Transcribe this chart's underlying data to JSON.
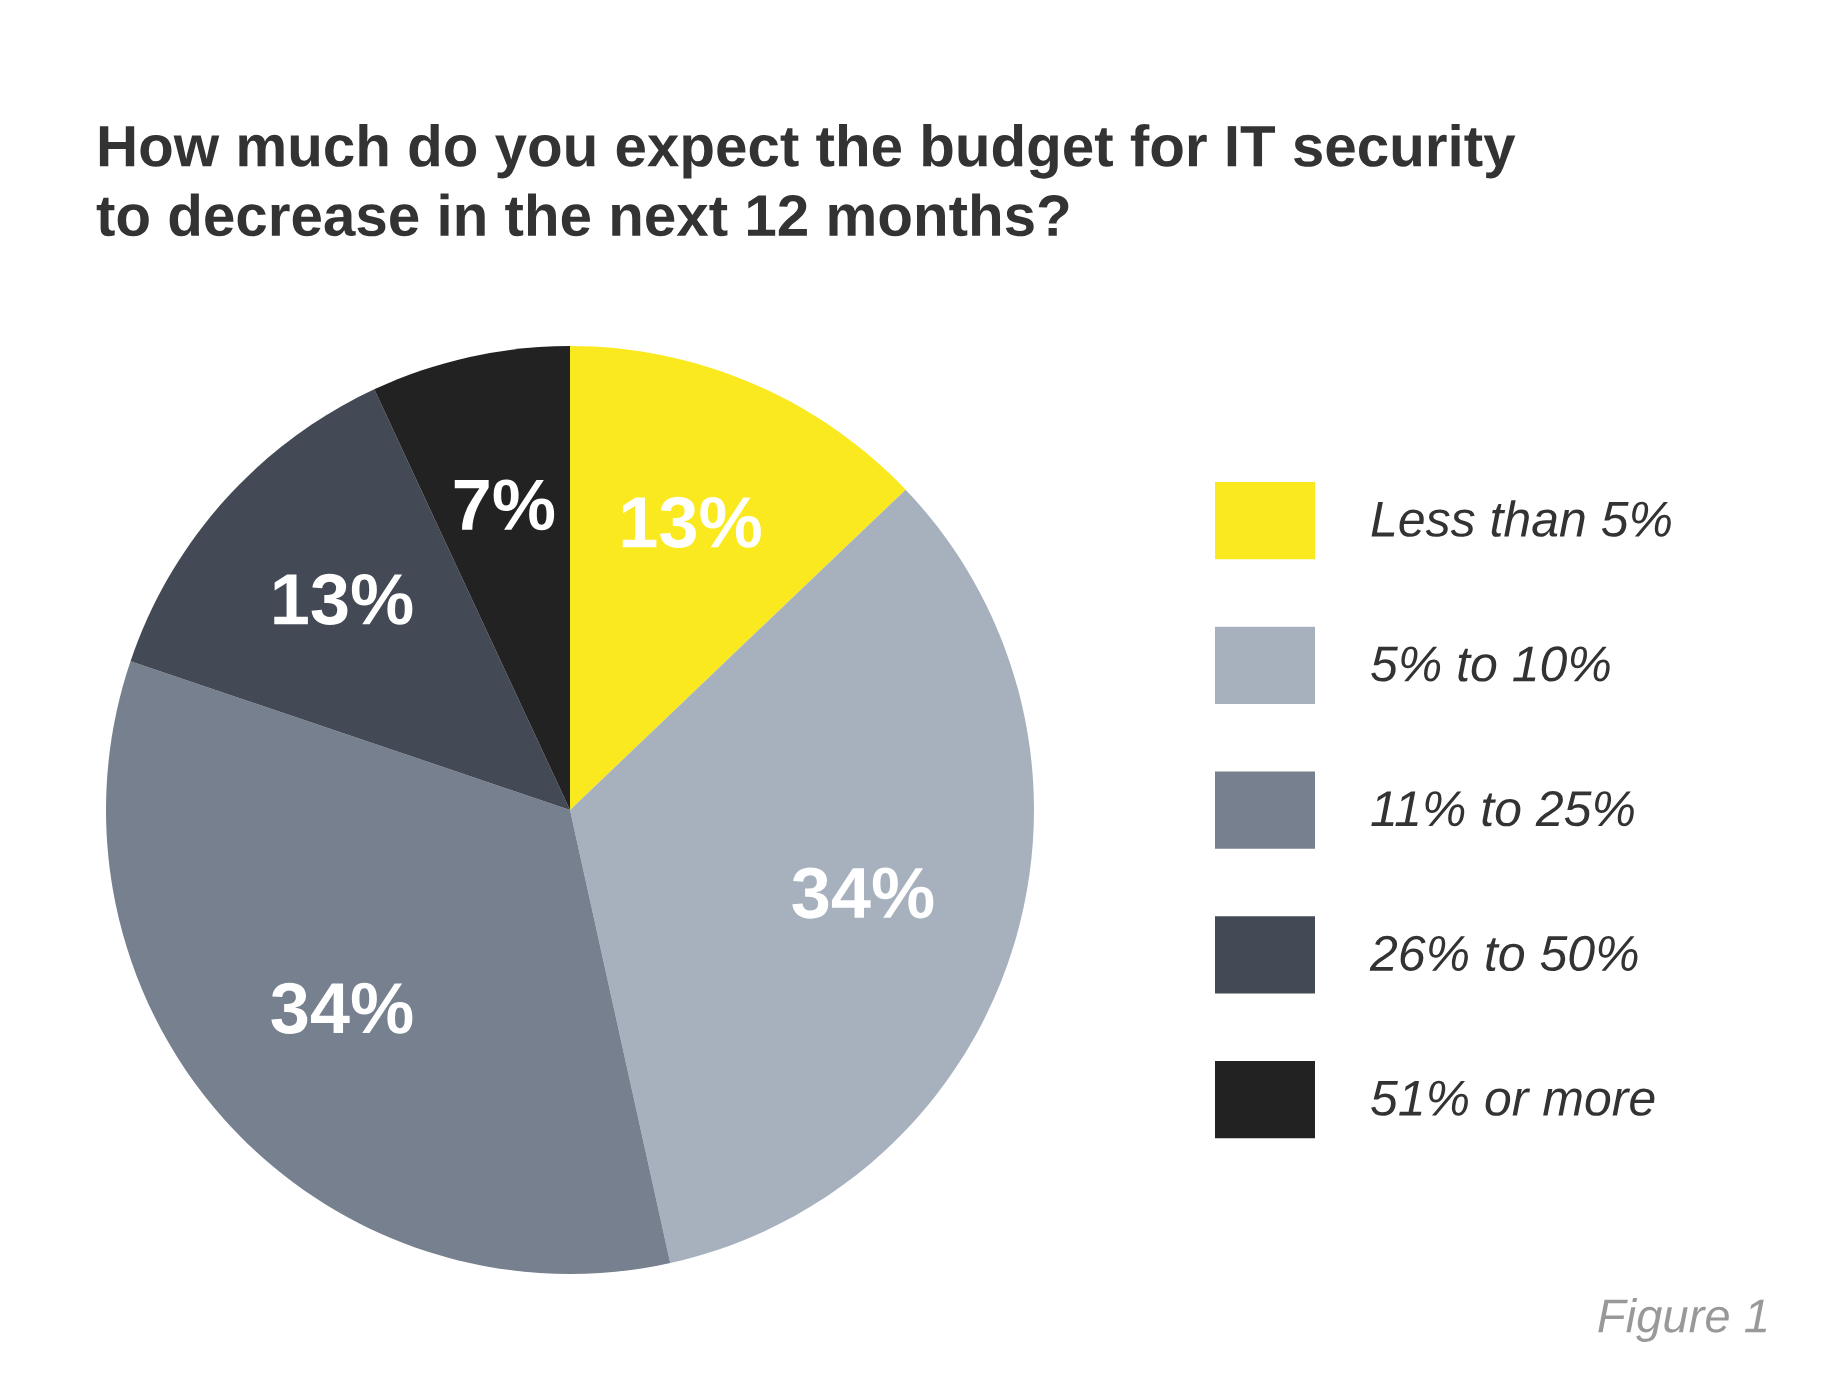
{
  "chart_data": {
    "type": "pie",
    "title": "How much do you expect the budget for IT security\nto decrease in the next 12 months?",
    "categories": [
      "Less than 5%",
      "5% to 10%",
      "11% to 25%",
      "26% to 50%",
      "51% or more"
    ],
    "values": [
      13,
      34,
      34,
      13,
      7
    ],
    "value_labels": [
      "13%",
      "34%",
      "34%",
      "13%",
      "7%"
    ],
    "colors": [
      "#fbe920",
      "#a7b1be",
      "#77808e",
      "#444a55",
      "#222222"
    ],
    "legend": "right",
    "annotations": [
      "Figure 1"
    ]
  }
}
